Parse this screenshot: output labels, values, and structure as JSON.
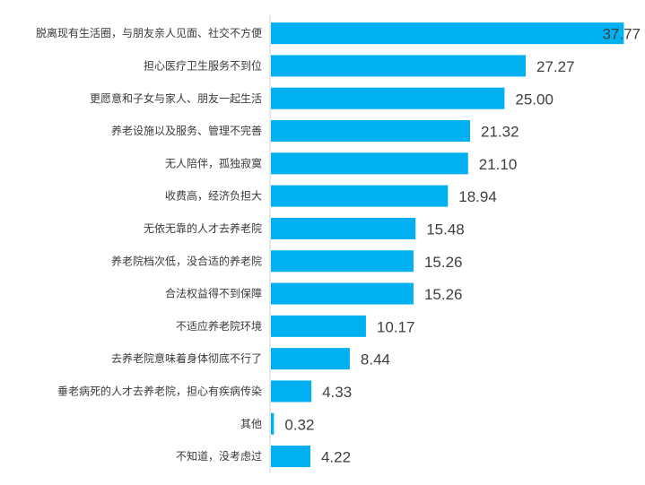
{
  "chart_data": {
    "type": "bar",
    "orientation": "horizontal",
    "bar_color": "#00b0f0",
    "axis_color": "#d0d0d0",
    "grid": false,
    "legend": "none",
    "xlim": [
      0,
      38.5
    ],
    "categories": [
      "脱离现有生活圈，与朋友亲人见面、社交不方便",
      "担心医疗卫生服务不到位",
      "更愿意和子女与家人、朋友一起生活",
      "养老设施以及服务、管理不完善",
      "无人陪伴，孤独寂寞",
      "收费高，经济负担大",
      "无依无靠的人才去养老院",
      "养老院档次低，没合适的养老院",
      "合法权益得不到保障",
      "不适应养老院环境",
      "去养老院意味着身体彻底不行了",
      "垂老病死的人才去养老院，担心有疾病传染",
      "其他",
      "不知道，没考虑过"
    ],
    "values": [
      37.77,
      27.27,
      25.0,
      21.32,
      21.1,
      18.94,
      15.48,
      15.26,
      15.26,
      10.17,
      8.44,
      4.33,
      0.32,
      4.22
    ],
    "value_labels": [
      "37.77",
      "27.27",
      "25.00",
      "21.32",
      "21.10",
      "18.94",
      "15.48",
      "15.26",
      "15.26",
      "10.17",
      "8.44",
      "4.33",
      "0.32",
      "4.22"
    ]
  }
}
